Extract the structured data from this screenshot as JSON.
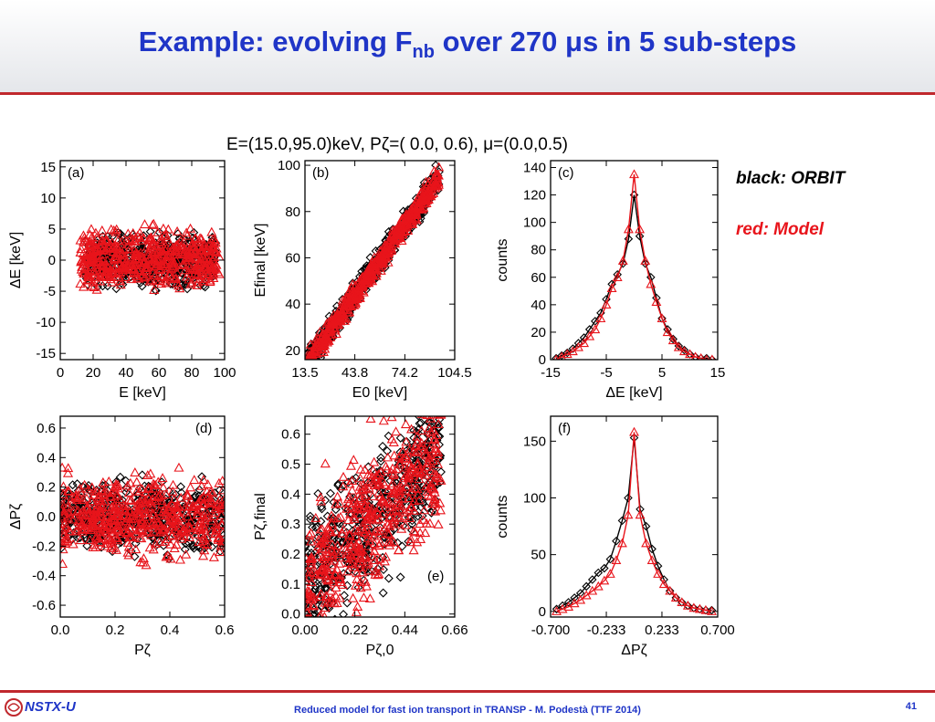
{
  "slide": {
    "title_prefix": "Example: evolving F",
    "title_sub": "nb",
    "title_suffix": " over 270 μs in 5 sub-steps",
    "legend_black": "black: ORBIT",
    "legend_red": "red: Model",
    "footer_text": "Reduced model for fast ion transport in TRANSP - M. Podestà (TTF 2014)",
    "page_number": "41",
    "logo_text": "NSTX-U"
  },
  "colors": {
    "title": "#1f35c7",
    "accent_red": "#c0282d",
    "model": "#e8141b",
    "orbit": "#000000"
  },
  "chart_data": [
    {
      "panel": "(a)",
      "type": "scatter",
      "figure_title": "E=(15.0,95.0)keV, Pζ=( 0.0, 0.6), μ=(0.0,0.5)",
      "xlabel": "E [keV]",
      "ylabel": "ΔE [keV]",
      "xlim": [
        0,
        100
      ],
      "ylim": [
        -16,
        16
      ],
      "xticks": [
        0,
        20,
        40,
        60,
        80,
        100
      ],
      "yticks": [
        -15,
        -10,
        -5,
        0,
        5,
        10,
        15
      ],
      "series": [
        {
          "name": "ORBIT",
          "marker": "diamond",
          "x_range": [
            15,
            95
          ],
          "y_center": 0,
          "y_spread": 6
        },
        {
          "name": "Model",
          "marker": "triangle",
          "x_range": [
            12,
            97
          ],
          "y_center": 0,
          "y_spread": 7
        }
      ]
    },
    {
      "panel": "(b)",
      "type": "scatter",
      "xlabel": "E0 [keV]",
      "ylabel": "Efinal [keV]",
      "xlim": [
        13.5,
        104.5
      ],
      "ylim": [
        16,
        102
      ],
      "xtick_labels": [
        "13.5",
        "43.8",
        "74.2",
        "104.5"
      ],
      "xticks": [
        13.5,
        43.8,
        74.2,
        104.5
      ],
      "yticks": [
        20,
        40,
        60,
        80,
        100
      ],
      "series": [
        {
          "name": "ORBIT",
          "marker": "diamond",
          "x_range": [
            15,
            95
          ],
          "y_offset": 0,
          "y_spread": 5
        },
        {
          "name": "Model",
          "marker": "triangle",
          "x_range": [
            15,
            95
          ],
          "y_offset": 0,
          "y_spread": 4
        }
      ]
    },
    {
      "panel": "(c)",
      "type": "line",
      "xlabel": "ΔE [keV]",
      "ylabel": "counts",
      "xlim": [
        -15,
        15
      ],
      "ylim": [
        0,
        145
      ],
      "xticks": [
        -15,
        -5,
        5,
        15
      ],
      "yticks": [
        0,
        20,
        40,
        60,
        80,
        100,
        120,
        140
      ],
      "series": [
        {
          "name": "ORBIT",
          "marker": "diamond",
          "x": [
            -14,
            -13,
            -12,
            -11,
            -10,
            -9,
            -8,
            -7,
            -6,
            -5,
            -4,
            -3,
            -2,
            -1,
            0,
            1,
            2,
            3,
            4,
            5,
            6,
            7,
            8,
            9,
            10,
            11,
            12,
            13,
            14
          ],
          "y": [
            1,
            3,
            5,
            8,
            12,
            16,
            22,
            28,
            34,
            44,
            55,
            62,
            70,
            88,
            120,
            90,
            70,
            60,
            45,
            30,
            22,
            15,
            10,
            7,
            4,
            2,
            1,
            1,
            0
          ]
        },
        {
          "name": "Model",
          "marker": "triangle",
          "x": [
            -14,
            -13,
            -12,
            -11,
            -10,
            -9,
            -8,
            -7,
            -6,
            -5,
            -4,
            -3,
            -2,
            -1,
            0,
            1,
            2,
            3,
            4,
            5,
            6,
            7,
            8,
            9,
            10,
            11,
            12,
            13,
            14
          ],
          "y": [
            0,
            2,
            4,
            6,
            9,
            12,
            17,
            22,
            30,
            40,
            52,
            60,
            72,
            95,
            135,
            95,
            72,
            55,
            42,
            30,
            20,
            14,
            9,
            6,
            4,
            2,
            1,
            0,
            0
          ]
        }
      ]
    },
    {
      "panel": "(d)",
      "type": "scatter",
      "xlabel": "Pζ",
      "ylabel": "ΔPζ",
      "xlim": [
        0,
        0.6
      ],
      "ylim": [
        -0.68,
        0.68
      ],
      "xticks": [
        0.0,
        0.2,
        0.4,
        0.6
      ],
      "xtick_labels": [
        "0.0",
        "0.2",
        "0.4",
        "0.6"
      ],
      "yticks": [
        -0.6,
        -0.4,
        -0.2,
        0.0,
        0.2,
        0.4,
        0.6
      ],
      "ytick_labels": [
        "-0.6",
        "-0.4",
        "-0.2",
        "0.0",
        "0.2",
        "0.4",
        "0.6"
      ],
      "series": [
        {
          "name": "ORBIT",
          "marker": "diamond",
          "x_range": [
            0,
            0.6
          ],
          "y_center": 0,
          "y_spread": 0.35
        },
        {
          "name": "Model",
          "marker": "triangle",
          "x_range": [
            0,
            0.6
          ],
          "y_center": 0,
          "y_spread": 0.4
        }
      ]
    },
    {
      "panel": "(e)",
      "type": "scatter",
      "xlabel": "Pζ,0",
      "ylabel": "Pζ,final",
      "xlim": [
        0,
        0.66
      ],
      "ylim": [
        -0.01,
        0.66
      ],
      "xticks": [
        0.0,
        0.22,
        0.44,
        0.66
      ],
      "xtick_labels": [
        "0.00",
        "0.22",
        "0.44",
        "0.66"
      ],
      "yticks": [
        0.0,
        0.1,
        0.2,
        0.3,
        0.4,
        0.5,
        0.6
      ],
      "ytick_labels": [
        "0.0",
        "0.1",
        "0.2",
        "0.3",
        "0.4",
        "0.5",
        "0.6"
      ],
      "series": [
        {
          "name": "ORBIT",
          "marker": "diamond",
          "x_range": [
            0,
            0.6
          ],
          "y_spread": 0.18
        },
        {
          "name": "Model",
          "marker": "triangle",
          "x_range": [
            0,
            0.6
          ],
          "y_spread": 0.2
        }
      ]
    },
    {
      "panel": "(f)",
      "type": "line",
      "xlabel": "ΔPζ",
      "ylabel": "counts",
      "xlim": [
        -0.7,
        0.7
      ],
      "ylim": [
        -5,
        172
      ],
      "xticks": [
        -0.7,
        -0.233,
        0.233,
        0.7
      ],
      "xtick_labels": [
        "-0.700",
        "-0.233",
        "0.233",
        "0.700"
      ],
      "yticks": [
        0,
        50,
        100,
        150
      ],
      "series": [
        {
          "name": "ORBIT",
          "marker": "diamond",
          "x": [
            -0.65,
            -0.6,
            -0.55,
            -0.5,
            -0.45,
            -0.4,
            -0.35,
            -0.3,
            -0.25,
            -0.2,
            -0.15,
            -0.1,
            -0.05,
            0.0,
            0.05,
            0.1,
            0.15,
            0.2,
            0.25,
            0.3,
            0.35,
            0.4,
            0.45,
            0.5,
            0.55,
            0.6,
            0.65
          ],
          "y": [
            2,
            5,
            8,
            12,
            16,
            22,
            28,
            34,
            38,
            46,
            62,
            80,
            100,
            153,
            90,
            75,
            55,
            40,
            28,
            18,
            12,
            8,
            5,
            3,
            2,
            1,
            1
          ]
        },
        {
          "name": "Model",
          "marker": "triangle",
          "x": [
            -0.65,
            -0.6,
            -0.55,
            -0.5,
            -0.45,
            -0.4,
            -0.35,
            -0.3,
            -0.25,
            -0.2,
            -0.15,
            -0.1,
            -0.05,
            0.0,
            0.05,
            0.1,
            0.15,
            0.2,
            0.25,
            0.3,
            0.35,
            0.4,
            0.45,
            0.5,
            0.55,
            0.6,
            0.65
          ],
          "y": [
            0,
            2,
            4,
            7,
            10,
            14,
            18,
            22,
            27,
            33,
            45,
            60,
            85,
            158,
            85,
            60,
            45,
            33,
            24,
            18,
            12,
            8,
            5,
            3,
            2,
            1,
            0
          ]
        }
      ]
    }
  ]
}
